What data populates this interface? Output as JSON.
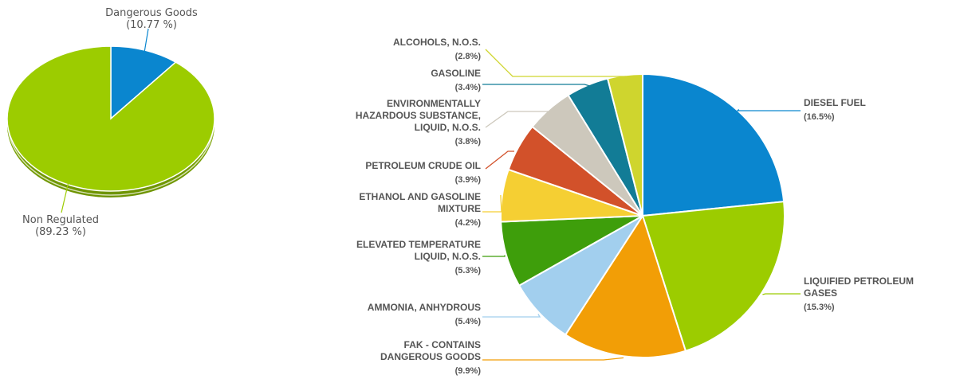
{
  "chart_data": [
    {
      "type": "pie",
      "title": "",
      "slices": [
        {
          "label": "Dangerous Goods",
          "pct_label": "(10.77 %)",
          "value": 10.77,
          "color": "#0a86cf"
        },
        {
          "label": "Non Regulated",
          "pct_label": "(89.23 %)",
          "value": 89.23,
          "color": "#9ccc00"
        }
      ]
    },
    {
      "type": "pie",
      "title": "",
      "slices": [
        {
          "label": "DIESEL FUEL",
          "pct_label": "(16.5%)",
          "value": 16.5,
          "color": "#0a86cf"
        },
        {
          "label": "LIQUIFIED PETROLEUM GASES",
          "pct_label": "(15.3%)",
          "value": 15.3,
          "color": "#9ccc00"
        },
        {
          "label": "FAK - CONTAINS DANGEROUS GOODS",
          "pct_label": "(9.9%)",
          "value": 9.9,
          "color": "#f29e06"
        },
        {
          "label": "AMMONIA, ANHYDROUS",
          "pct_label": "(5.4%)",
          "value": 5.4,
          "color": "#a2cfee"
        },
        {
          "label": "ELEVATED TEMPERATURE LIQUID, N.O.S.",
          "pct_label": "(5.3%)",
          "value": 5.3,
          "color": "#3e9e0b"
        },
        {
          "label": "ETHANOL AND GASOLINE MIXTURE",
          "pct_label": "(4.2%)",
          "value": 4.2,
          "color": "#f5cf33"
        },
        {
          "label": "PETROLEUM CRUDE OIL",
          "pct_label": "(3.9%)",
          "value": 3.9,
          "color": "#d2512a"
        },
        {
          "label": "ENVIRONMENTALLY HAZARDOUS SUBSTANCE, LIQUID, N.O.S.",
          "pct_label": "(3.8%)",
          "value": 3.8,
          "color": "#cdc8bc"
        },
        {
          "label": "GASOLINE",
          "pct_label": "(3.4%)",
          "value": 3.4,
          "color": "#127c96"
        },
        {
          "label": "ALCOHOLS, N.O.S.",
          "pct_label": "(2.8%)",
          "value": 2.8,
          "color": "#cfd52e"
        }
      ]
    }
  ]
}
